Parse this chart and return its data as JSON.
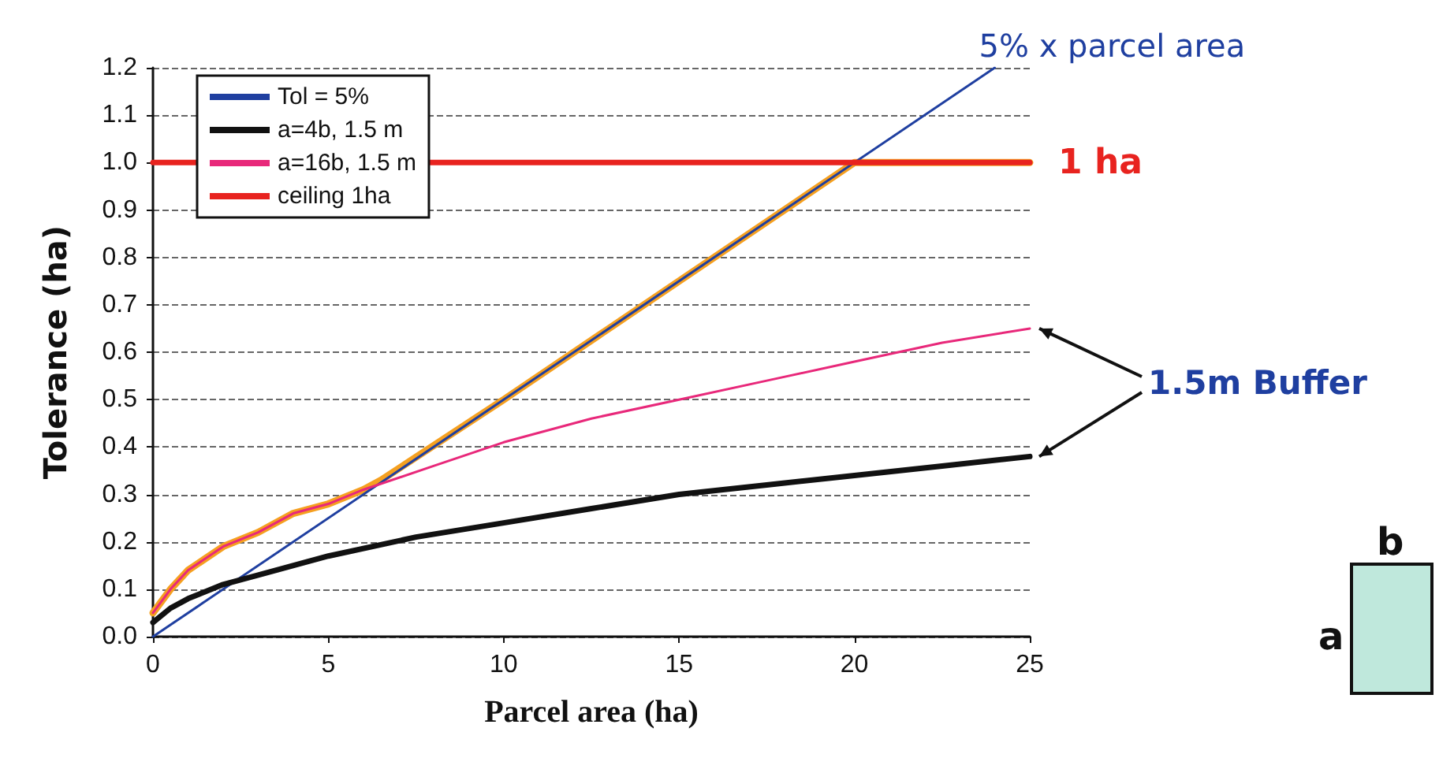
{
  "chart_data": {
    "type": "line",
    "xlabel": "Parcel area (ha)",
    "ylabel": "Tolerance (ha)",
    "xlim": [
      0,
      25
    ],
    "xticks": [
      0,
      5,
      10,
      15,
      20,
      25
    ],
    "ylim": [
      0,
      1.2
    ],
    "yticks": [
      {
        "value": 0,
        "label": "0.0"
      },
      {
        "value": 0.1,
        "label": "0.1"
      },
      {
        "value": 0.2,
        "label": "0.2"
      },
      {
        "value": 0.3,
        "label": "0.3"
      },
      {
        "value": 0.4,
        "label": "0.4"
      },
      {
        "value": 0.5,
        "label": "0.5"
      },
      {
        "value": 0.6,
        "label": "0.6"
      },
      {
        "value": 0.7,
        "label": "0.7"
      },
      {
        "value": 0.8,
        "label": "0.8"
      },
      {
        "value": 0.9,
        "label": "0.9"
      },
      {
        "value": 1,
        "label": "1.0"
      },
      {
        "value": 1.1,
        "label": "1.1"
      },
      {
        "value": 1.2,
        "label": "1.2"
      }
    ],
    "grid": "y",
    "legend": "top left",
    "marker": "none",
    "line_style": "solid",
    "series": [
      {
        "name": "Tol = 5%",
        "color": "#1f3fa0",
        "x": [
          0,
          24
        ],
        "values": [
          0,
          1.2
        ]
      },
      {
        "name": "a=4b, 1.5 m",
        "color": "#111111",
        "x": [
          0,
          0.5,
          1,
          2,
          3,
          5,
          7.5,
          10,
          12.5,
          15,
          17.5,
          20,
          22.5,
          25
        ],
        "values": [
          0.03,
          0.06,
          0.08,
          0.11,
          0.13,
          0.17,
          0.21,
          0.24,
          0.27,
          0.3,
          0.32,
          0.34,
          0.36,
          0.38
        ]
      },
      {
        "name": "a=16b, 1.5 m",
        "color": "#e8287a",
        "x": [
          0,
          0.5,
          1,
          2,
          3,
          4,
          5,
          6,
          8,
          10,
          12.5,
          15,
          17.5,
          20,
          22.5,
          25
        ],
        "values": [
          0.05,
          0.1,
          0.14,
          0.19,
          0.22,
          0.26,
          0.28,
          0.31,
          0.36,
          0.41,
          0.46,
          0.5,
          0.54,
          0.58,
          0.62,
          0.65
        ]
      },
      {
        "name": "ceiling 1ha",
        "color": "#e8231f",
        "x": [
          0,
          25
        ],
        "values": [
          1,
          1
        ]
      },
      {
        "color": "#f5a020",
        "x": [
          0,
          0.5,
          1,
          2,
          3,
          4,
          5,
          6,
          6.5,
          10,
          15,
          20,
          25
        ],
        "values": [
          0.05,
          0.1,
          0.14,
          0.19,
          0.22,
          0.26,
          0.28,
          0.31,
          0.33,
          0.5,
          0.75,
          1,
          1
        ]
      }
    ],
    "annotations": [
      {
        "text": "5% x parcel area",
        "x": 24,
        "y": 1.2
      },
      {
        "text": "1 ha",
        "x": 25,
        "y": 1
      },
      "1.5m Buffer",
      "b",
      "a"
    ]
  }
}
